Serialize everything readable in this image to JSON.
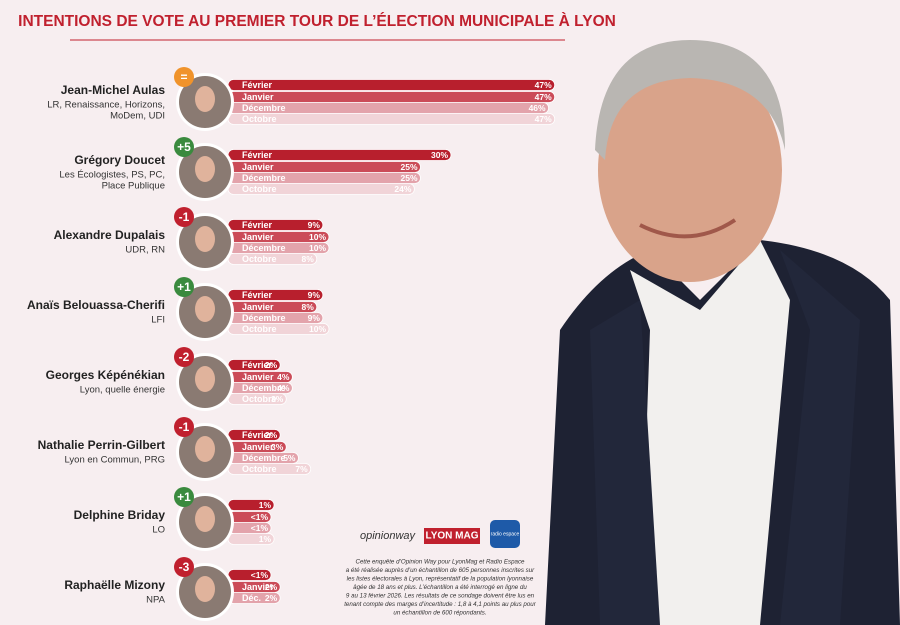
{
  "chart_data": {
    "type": "grouped-hbar",
    "title": "INTENTIONS DE VOTE AU PREMIER TOUR DE L’ÉLECTION MUNICIPALE À LYON",
    "colors": [
      "#b81f2d",
      "#cb4b58",
      "#e3a3ab",
      "#f1d4d8"
    ],
    "groups": [
      {
        "name": "Jean-Michel Aulas",
        "party": [
          "LR, Renaissance, Horizons,",
          "MoDem, UDI"
        ],
        "change": "=",
        "categories": [
          "Février",
          "Janvier",
          "Décembre",
          "Octobre"
        ],
        "values": [
          47,
          47,
          46,
          47
        ],
        "value_labels": [
          "47%",
          "47%",
          "46%",
          "47%"
        ]
      },
      {
        "name": "Grégory Doucet",
        "party": [
          "Les Écologistes, PS, PC,",
          "Place Publique"
        ],
        "change": "+5",
        "categories": [
          "Février",
          "Janvier",
          "Décembre",
          "Octobre"
        ],
        "values": [
          30,
          25,
          25,
          24
        ],
        "value_labels": [
          "30%",
          "25%",
          "25%",
          "24%"
        ]
      },
      {
        "name": "Alexandre Dupalais",
        "party": [
          "UDR, RN"
        ],
        "change": "-1",
        "categories": [
          "Février",
          "Janvier",
          "Décembre",
          "Octobre"
        ],
        "values": [
          9,
          10,
          10,
          8
        ],
        "value_labels": [
          "9%",
          "10%",
          "10%",
          "8%"
        ]
      },
      {
        "name": "Anaïs Belouassa-Cherifi",
        "party": [
          "LFI"
        ],
        "change": "+1",
        "categories": [
          "Février",
          "Janvier",
          "Décembre",
          "Octobre"
        ],
        "values": [
          9,
          8,
          9,
          10
        ],
        "value_labels": [
          "9%",
          "8%",
          "9%",
          "10%"
        ]
      },
      {
        "name": "Georges Képénékian",
        "party": [
          "Lyon, quelle énergie"
        ],
        "change": "-2",
        "categories": [
          "Février",
          "Janvier",
          "Décembre",
          "Octobre"
        ],
        "values": [
          2,
          4,
          4,
          3
        ],
        "value_labels": [
          "2%",
          "4%",
          "4%",
          "3%"
        ]
      },
      {
        "name": "Nathalie Perrin-Gilbert",
        "party": [
          "Lyon en Commun, PRG"
        ],
        "change": "-1",
        "categories": [
          "Février",
          "Janvier",
          "Décembre",
          "Octobre"
        ],
        "values": [
          2,
          3,
          5,
          7
        ],
        "value_labels": [
          "2%",
          "3%",
          "5%",
          "7%"
        ]
      },
      {
        "name": "Delphine Briday",
        "party": [
          "LO"
        ],
        "change": "+1",
        "categories": [
          null,
          null,
          null,
          null
        ],
        "values": [
          1,
          0.5,
          0.5,
          1
        ],
        "value_labels": [
          "1%",
          "<1%",
          "<1%",
          "1%"
        ]
      },
      {
        "name": "Raphaëlle Mizony",
        "party": [
          "NPA"
        ],
        "change": "-3",
        "categories": [
          null,
          "Janvier",
          "Déc."
        ],
        "values": [
          0.5,
          2,
          2
        ],
        "value_labels": [
          "<1%",
          "2%",
          "2%"
        ]
      }
    ]
  },
  "footer": {
    "logos": [
      "opinionway",
      "LYON MAG",
      "radio espace"
    ],
    "note": [
      "Cette enquête d’Opinion Way pour LyonMag et Radio Espace",
      "a été réalisée auprès d’un échantillon de 605 personnes inscrites sur",
      "les listes électorales à Lyon, représentatif de la population lyonnaise",
      "âgée de 18 ans et plus. L’échantillon a été interrogé en ligne du",
      "9 au 13 février 2026. Les résultats de ce sondage doivent être lus en",
      "tenant compte des marges d’incertitude : 1,8 à 4,1 points au plus pour",
      "un échantillon de 600 répondants."
    ]
  }
}
